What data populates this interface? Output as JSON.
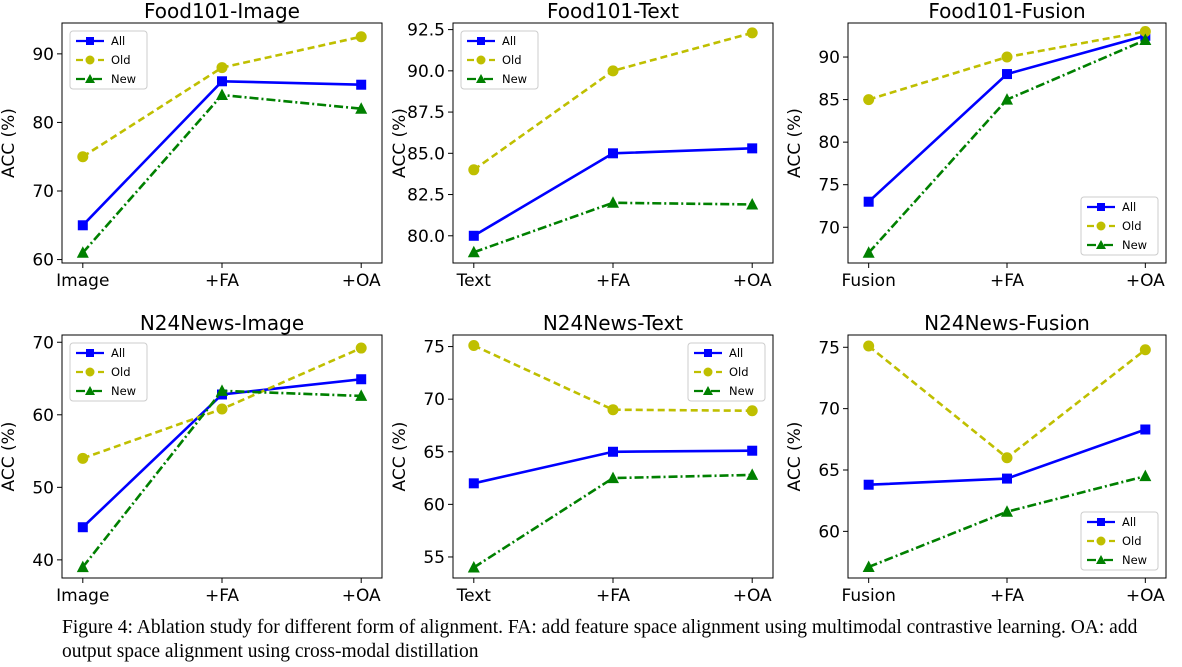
{
  "caption": {
    "text": "Figure 4: Ablation study for different form of alignment. FA: add feature space alignment using multimodal contrastive learning. OA: add output space alignment using cross-modal distillation"
  },
  "series_style": {
    "All": {
      "color": "#0000ff",
      "marker": "square",
      "dash": "solid"
    },
    "Old": {
      "color": "#bfbf00",
      "marker": "circle",
      "dash": "dashed"
    },
    "New": {
      "color": "#008000",
      "marker": "triangle",
      "dash": "dashdot"
    }
  },
  "chart_data": [
    {
      "type": "line",
      "title": "Food101-Image",
      "ylabel": "ACC (%)",
      "categories": [
        "Image",
        "+FA",
        "+OA"
      ],
      "ylim": [
        59.5,
        94.5
      ],
      "yticks": [
        60,
        70,
        80,
        90
      ],
      "tick_decimals": 0,
      "legend": "top-left",
      "series": [
        {
          "name": "All",
          "values": [
            65,
            86,
            85.5
          ]
        },
        {
          "name": "Old",
          "values": [
            75,
            88,
            92.5
          ]
        },
        {
          "name": "New",
          "values": [
            61,
            84,
            82
          ]
        }
      ]
    },
    {
      "type": "line",
      "title": "Food101-Text",
      "ylabel": "ACC (%)",
      "categories": [
        "Text",
        "+FA",
        "+OA"
      ],
      "ylim": [
        78.35,
        92.9
      ],
      "yticks": [
        80.0,
        82.5,
        85.0,
        87.5,
        90.0,
        92.5
      ],
      "tick_decimals": 1,
      "legend": "top-left",
      "series": [
        {
          "name": "All",
          "values": [
            80,
            85,
            85.3
          ]
        },
        {
          "name": "Old",
          "values": [
            84,
            90,
            92.3
          ]
        },
        {
          "name": "New",
          "values": [
            79,
            82,
            81.9
          ]
        }
      ]
    },
    {
      "type": "line",
      "title": "Food101-Fusion",
      "ylabel": "ACC (%)",
      "categories": [
        "Fusion",
        "+FA",
        "+OA"
      ],
      "ylim": [
        65.8,
        94.0
      ],
      "yticks": [
        70,
        75,
        80,
        85,
        90
      ],
      "tick_decimals": 0,
      "legend": "bottom-right",
      "series": [
        {
          "name": "All",
          "values": [
            73,
            88,
            92.5
          ]
        },
        {
          "name": "Old",
          "values": [
            85,
            90,
            93
          ]
        },
        {
          "name": "New",
          "values": [
            67,
            85,
            92
          ]
        }
      ]
    },
    {
      "type": "line",
      "title": "N24News-Image",
      "ylabel": "ACC (%)",
      "categories": [
        "Image",
        "+FA",
        "+OA"
      ],
      "ylim": [
        37.5,
        71.0
      ],
      "yticks": [
        40,
        50,
        60,
        70
      ],
      "tick_decimals": 0,
      "legend": "top-left",
      "series": [
        {
          "name": "All",
          "values": [
            44.5,
            62.8,
            64.9
          ]
        },
        {
          "name": "Old",
          "values": [
            54,
            60.8,
            69.2
          ]
        },
        {
          "name": "New",
          "values": [
            39,
            63.3,
            62.6
          ]
        }
      ]
    },
    {
      "type": "line",
      "title": "N24News-Text",
      "ylabel": "ACC (%)",
      "categories": [
        "Text",
        "+FA",
        "+OA"
      ],
      "ylim": [
        53.0,
        76.1
      ],
      "yticks": [
        55,
        60,
        65,
        70,
        75
      ],
      "tick_decimals": 0,
      "legend": "top-right",
      "series": [
        {
          "name": "All",
          "values": [
            62,
            65,
            65.1
          ]
        },
        {
          "name": "Old",
          "values": [
            75.1,
            69,
            68.9
          ]
        },
        {
          "name": "New",
          "values": [
            54,
            62.5,
            62.8
          ]
        }
      ]
    },
    {
      "type": "line",
      "title": "N24News-Fusion",
      "ylabel": "ACC (%)",
      "categories": [
        "Fusion",
        "+FA",
        "+OA"
      ],
      "ylim": [
        56.2,
        76.0
      ],
      "yticks": [
        60,
        65,
        70,
        75
      ],
      "tick_decimals": 0,
      "legend": "bottom-right",
      "series": [
        {
          "name": "All",
          "values": [
            63.8,
            64.3,
            68.3
          ]
        },
        {
          "name": "Old",
          "values": [
            75.1,
            66,
            74.8
          ]
        },
        {
          "name": "New",
          "values": [
            57.1,
            61.6,
            64.5
          ]
        }
      ]
    }
  ]
}
